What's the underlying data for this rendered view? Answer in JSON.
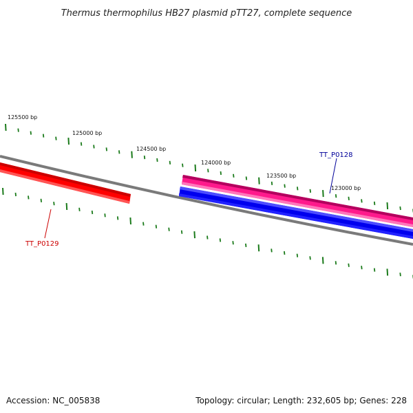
{
  "title": "Thermus thermophilus HB27 plasmid pTT27, complete sequence",
  "footer": {
    "accession": "Accession: NC_005838",
    "summary": "Topology: circular; Length: 232,605 bp; Genes: 228"
  },
  "scale_labels": [
    "125500 bp",
    "125000 bp",
    "124500 bp",
    "124000 bp",
    "123500 bp",
    "123000 bp"
  ],
  "genes": [
    {
      "name": "TT_P0129",
      "strand": "reverse",
      "color": "#ff0000",
      "label_color": "#cc0000"
    },
    {
      "name": "TT_P0128",
      "strand": "reverse",
      "color": "#0000ee",
      "label_color": "#000099"
    },
    {
      "name": "",
      "strand": "forward",
      "color": "#ff1a8c"
    }
  ],
  "colors": {
    "backbone": "#7a7a7a",
    "ticks": "#1a7a1a"
  }
}
